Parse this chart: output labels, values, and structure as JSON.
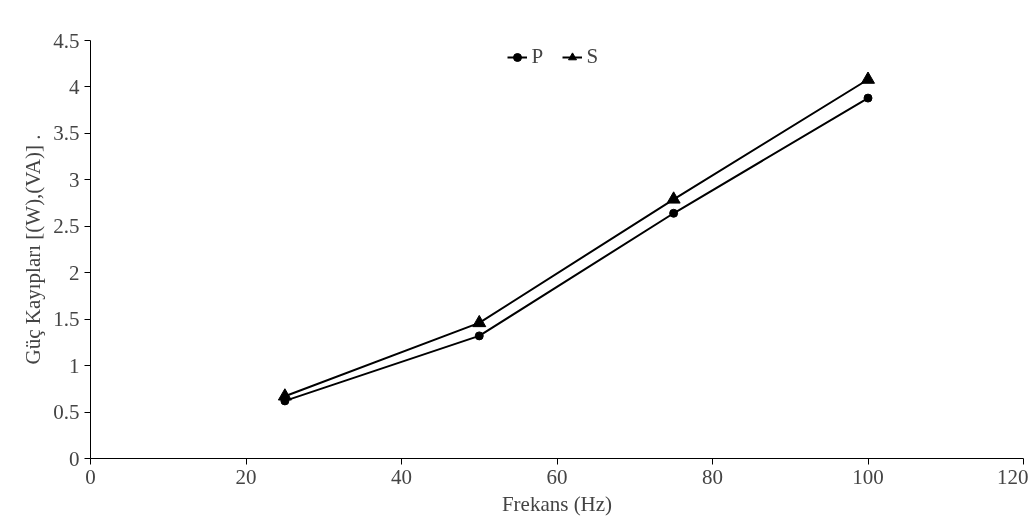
{
  "chart_data": {
    "type": "line",
    "xlabel": "Frekans (Hz)",
    "ylabel": "Güç Kayıpları [(W),(VA)] .",
    "x": [
      25,
      50,
      75,
      100
    ],
    "series": [
      {
        "name": "P",
        "color": "#000000",
        "marker": "circle",
        "values": [
          0.62,
          1.32,
          2.64,
          3.88
        ]
      },
      {
        "name": "S",
        "color": "#000000",
        "marker": "triangle",
        "values": [
          0.67,
          1.46,
          2.79,
          4.08
        ]
      }
    ],
    "xlim": [
      0,
      120
    ],
    "xticks": [
      0,
      20,
      40,
      60,
      80,
      100,
      120
    ],
    "ylim": [
      0,
      4.5
    ],
    "yticks": [
      0,
      0.5,
      1,
      1.5,
      2,
      2.5,
      3,
      3.5,
      4,
      4.5
    ],
    "grid": false,
    "legend": "top",
    "line_style": "solid"
  }
}
